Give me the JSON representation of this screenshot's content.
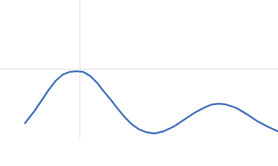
{
  "chart_data": {
    "type": "line",
    "x": [
      36,
      50,
      60,
      70,
      80,
      90,
      100,
      110,
      120,
      130,
      140,
      150,
      160,
      170,
      180,
      190,
      200,
      210,
      222,
      235,
      250,
      265,
      280,
      295,
      305,
      315,
      325,
      340,
      355,
      370,
      385,
      400
    ],
    "series": [
      {
        "color": "#3a68b8",
        "values": [
          22,
          40,
          55,
          70,
          83,
          92,
          96,
          97,
          96,
          90,
          80,
          67,
          55,
          42,
          30,
          20,
          13,
          9,
          7,
          10,
          17,
          27,
          37,
          45,
          49,
          50,
          49,
          44,
          35,
          25,
          17,
          10
        ]
      }
    ],
    "xlim": [
      0,
      400
    ],
    "ylim": [
      0,
      200
    ],
    "xticks": [
      115
    ],
    "yticks": [
      100
    ],
    "grid": true
  }
}
